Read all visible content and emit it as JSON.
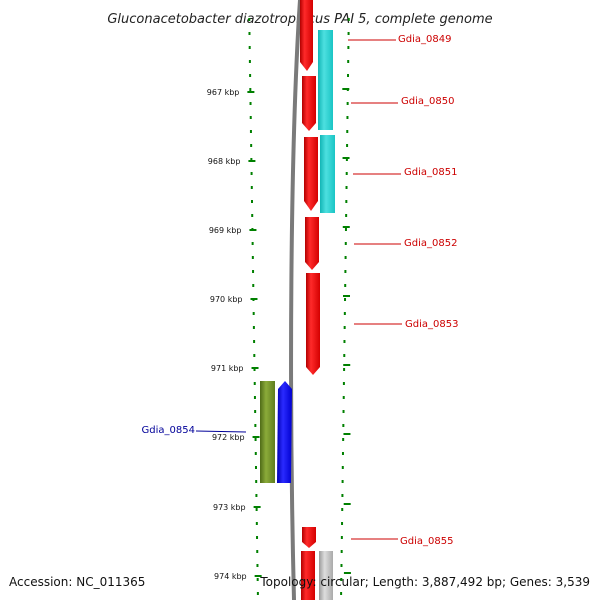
{
  "title": "Gluconacetobacter diazotrophicus PAI 5, complete genome",
  "footer": {
    "accession": "Accession: NC_011365",
    "topology": "Topology: circular; Length: 3,887,492 bp; Genes: 3,539"
  },
  "scale": {
    "unit": "kbp",
    "ticks": [
      "967 kbp",
      "968 kbp",
      "969 kbp",
      "970 kbp",
      "971 kbp",
      "972 kbp",
      "973 kbp",
      "974 kbp"
    ]
  },
  "genes": [
    {
      "label": "Gdia_0849",
      "color": "#cc0000"
    },
    {
      "label": "Gdia_0850",
      "color": "#cc0000"
    },
    {
      "label": "Gdia_0851",
      "color": "#cc0000"
    },
    {
      "label": "Gdia_0852",
      "color": "#cc0000"
    },
    {
      "label": "Gdia_0853",
      "color": "#cc0000"
    },
    {
      "label": "Gdia_0854",
      "color": "#000099"
    },
    {
      "label": "Gdia_0855",
      "color": "#cc0000"
    }
  ],
  "colors": {
    "forward_cds": "#ff0000",
    "reverse_cds": "#0000ff",
    "forward_cog": "#22cccc",
    "reverse_cog": "#6b8e23",
    "other": "#bbbbbb",
    "backbone": "#777777",
    "tick": "#008000"
  }
}
